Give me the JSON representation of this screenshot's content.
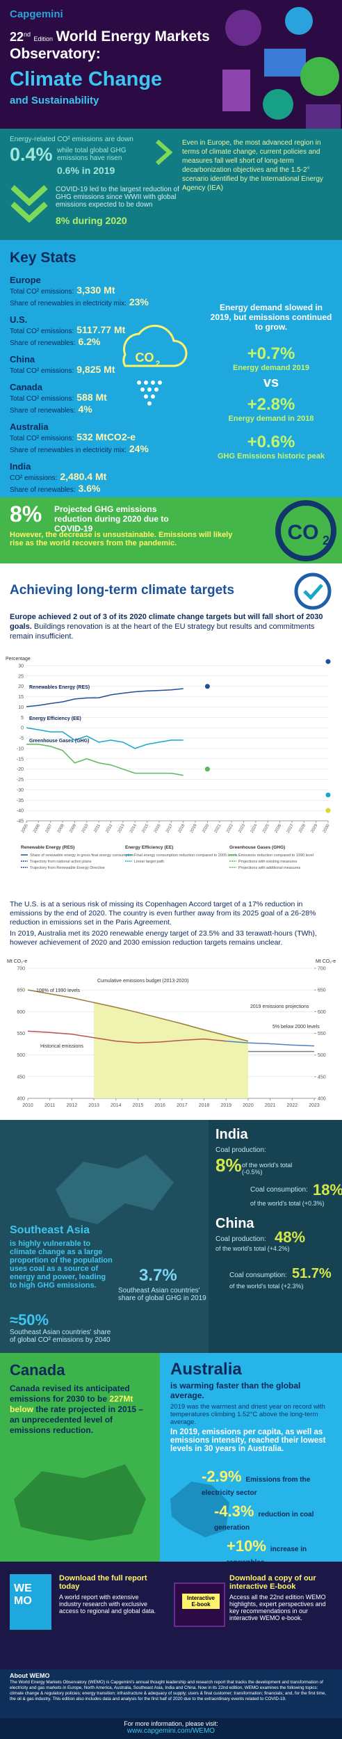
{
  "header": {
    "logo": "Capgemini",
    "edition_number": "22",
    "edition_suffix": "nd",
    "edition_word": "Edition",
    "title": "World Energy Markets Observatory:",
    "subtitle": "Climate Change",
    "tagline": "and Sustainability"
  },
  "intro": {
    "co2_text": "Energy-related CO² emissions are down",
    "co2_value": "0.4%",
    "ghg_text": "while total global GHG emissions have risen",
    "ghg_value": "0.6% in 2019",
    "covid_text": "COVID-19 led to the largest reduction of GHG emissions since WWII with global emissions expected to be down",
    "covid_value": "8% during 2020",
    "europe_text": "Even in Europe, the most advanced region in terms of climate change, current policies and measures fall well short of long-term decarbonization objectives and the 1.5-2° scenario identified by the International Energy Agency (IEA)"
  },
  "key_stats": {
    "title": "Key Stats",
    "regions": [
      {
        "name": "Europe",
        "lines": [
          {
            "label": "Total CO² emissions:",
            "value": "3,330 Mt"
          },
          {
            "label": "Share of renewables in electricity mix:",
            "value": "23%"
          }
        ]
      },
      {
        "name": "U.S.",
        "lines": [
          {
            "label": "Total CO² emissions:",
            "value": "5117.77 Mt"
          },
          {
            "label": "Share of renewables:",
            "value": "6.2%"
          }
        ]
      },
      {
        "name": "China",
        "lines": [
          {
            "label": "Total CO² emissions:",
            "value": "9,825 Mt"
          }
        ]
      },
      {
        "name": "Canada",
        "lines": [
          {
            "label": "Total CO² emissions:",
            "value": "588 Mt"
          },
          {
            "label": "Share of renewables:",
            "value": "4%"
          }
        ]
      },
      {
        "name": "Australia",
        "lines": [
          {
            "label": "Total CO² emissions:",
            "value": "532 MtCO2-e"
          },
          {
            "label": "Share of renewables in electricity mix:",
            "value": "24%"
          }
        ]
      },
      {
        "name": "India",
        "lines": [
          {
            "label": "CO² emissions:",
            "value": "2,480.4 Mt"
          },
          {
            "label": "Share of renewables:",
            "value": "3.6%"
          }
        ]
      }
    ]
  },
  "co2_icon": {
    "main": "CO",
    "sub": "2"
  },
  "demand": {
    "headline": "Energy demand slowed in 2019, but emissions continued to grow.",
    "items": [
      {
        "value": "+0.7%",
        "label": "Energy demand 2019"
      },
      {
        "value": "+2.8%",
        "label": "Energy demand in 2018"
      },
      {
        "value": "+0.6%",
        "label": "GHG Emissions historic peak"
      }
    ],
    "vs": "vs"
  },
  "projection": {
    "value": "8%",
    "text": "Projected GHG emissions reduction during 2020 due to COVID-19",
    "note": "However, the decrease is unsustainable. Emissions will likely rise as the world recovers from the pandemic."
  },
  "targets": {
    "title": "Achieving long-term climate targets",
    "lead": "Europe achieved 2 out of 3 of its 2020 climate change targets but will fall short of 2030 goals.",
    "body": "Buildings renovation is at the heart of the EU strategy but results and commitments remain insufficient."
  },
  "eu_chart": {
    "type": "line",
    "y_label": "Percentage",
    "xlim": [
      2005,
      2030
    ],
    "xticks": [
      2005,
      2006,
      2007,
      2008,
      2009,
      2010,
      2011,
      2012,
      2013,
      2014,
      2015,
      2016,
      2017,
      2018,
      2019,
      2020,
      2021,
      2022,
      2023,
      2024,
      2025,
      2026,
      2027,
      2028,
      2029,
      2030
    ],
    "ylim": [
      -45,
      30
    ],
    "yticks": [
      30,
      25,
      20,
      15,
      10,
      5,
      0,
      -5,
      -10,
      -15,
      -20,
      -25,
      -30,
      -35,
      -40,
      -45
    ],
    "series": [
      {
        "name": "Renewables Energy (RES)",
        "color": "#1f4e9c",
        "x": [
          2005,
          2006,
          2007,
          2008,
          2009,
          2010,
          2011,
          2012,
          2013,
          2014,
          2015,
          2016,
          2017,
          2018
        ],
        "values": [
          10.2,
          10.8,
          11.7,
          12.5,
          13.9,
          14.4,
          14.5,
          15.9,
          16.7,
          17.4,
          17.8,
          18.0,
          18.3,
          18.9
        ]
      },
      {
        "name": "Energy Efficiency (EE)",
        "color": "#18a7c8",
        "x": [
          2005,
          2006,
          2007,
          2008,
          2009,
          2010,
          2011,
          2012,
          2013,
          2014,
          2015,
          2016,
          2017,
          2018
        ],
        "values": [
          0,
          -1,
          -2,
          -2,
          -6,
          -4,
          -7,
          -6,
          -7,
          -10,
          -8,
          -7,
          -6,
          -6
        ]
      },
      {
        "name": "Greenhouse Gases (GHG)",
        "color": "#5cb85c",
        "x": [
          2005,
          2006,
          2007,
          2008,
          2009,
          2010,
          2011,
          2012,
          2013,
          2014,
          2015,
          2016,
          2017,
          2018
        ],
        "values": [
          -8,
          -8,
          -9,
          -11,
          -17,
          -15,
          -17,
          -18,
          -20,
          -22,
          -22,
          -22,
          -22,
          -23
        ]
      }
    ],
    "targets": [
      {
        "x": 2020,
        "value": 20,
        "color": "#1f4e9c"
      },
      {
        "x": 2030,
        "value": 32,
        "color": "#1f4e9c"
      },
      {
        "x": 2020,
        "value": -20,
        "color": "#18a7c8"
      },
      {
        "x": 2030,
        "value": -32.5,
        "color": "#18a7c8"
      },
      {
        "x": 2020,
        "value": -20,
        "color": "#5cb85c"
      },
      {
        "x": 2030,
        "value": -40,
        "color": "#d9d926"
      }
    ],
    "legend": [
      {
        "title": "Renewable Energy (RES)",
        "items": [
          "Share of renewable energy in gross final energy consumption",
          "Trajectory from national action plans",
          "Trajectory from Renewable Energy Directive"
        ]
      },
      {
        "title": "Energy Efficiency (EE)",
        "items": [
          "Final energy consumption reduction compared to 2005 levels",
          "Linear target path"
        ]
      },
      {
        "title": "Greenhouse Gases (GHG)",
        "items": [
          "Emissions reduction compared to 1990 level",
          "Projections with existing measures",
          "Projections with additional measures"
        ]
      }
    ]
  },
  "us_text": "The U.S. is at a serious risk of missing its Copenhagen Accord target of a 17% reduction in emissions by the end of 2020. The country is even further away from its 2025 goal of a 26-28% reduction in emissions set in the Paris Agreement.",
  "aus_text": "In 2019, Australia met its 2020 renewable energy target of 23.5% and 33 terawatt-hours (TWh), however achievement of 2020 and 2030 emission reduction targets remains unclear.",
  "aus_chart": {
    "type": "line",
    "y_label": "Mt CO₂-e",
    "xlim": [
      2010,
      2023
    ],
    "xticks": [
      2010,
      2011,
      2012,
      2013,
      2014,
      2015,
      2016,
      2017,
      2018,
      2019,
      2020,
      2021,
      2022,
      2023
    ],
    "ylim": [
      400,
      700
    ],
    "yticks": [
      400,
      450,
      500,
      550,
      600,
      650,
      700
    ],
    "y2lim": [
      400,
      700
    ],
    "y2ticks": [
      400,
      450,
      500,
      550,
      600,
      650,
      700
    ],
    "budget_x": [
      2013,
      2020
    ],
    "budget_color": "#eef3b0",
    "series": [
      {
        "name": "108% of 1990 levels",
        "color": "#9c7a3c",
        "x": [
          2010,
          2011,
          2012,
          2013,
          2014,
          2015,
          2016,
          2017,
          2018,
          2019,
          2020
        ],
        "values": [
          650,
          641,
          632,
          621,
          610,
          598,
          585,
          572,
          558,
          545,
          532
        ]
      },
      {
        "name": "Historical emissions",
        "color": "#c0504d",
        "x": [
          2010,
          2011,
          2012,
          2013,
          2014,
          2015,
          2016,
          2017,
          2018,
          2019
        ],
        "values": [
          555,
          552,
          548,
          540,
          532,
          528,
          530,
          534,
          537,
          532
        ]
      },
      {
        "name": "2019 emissions projections",
        "color": "#4f81bd",
        "x": [
          2019,
          2020,
          2021,
          2022,
          2023
        ],
        "values": [
          532,
          528,
          526,
          523,
          521
        ]
      },
      {
        "name": "5% below 2000 levels",
        "color": "#7f7f7f",
        "x": [
          2020,
          2021,
          2022,
          2023
        ],
        "values": [
          508,
          508,
          508,
          508
        ]
      }
    ],
    "annotations": [
      "Cumulative emissions budget (2013-2020)"
    ]
  },
  "asia": {
    "title": "Southeast Asia",
    "text": "is highly vulnerable to climate change as a large proportion of the population uses coal as a source of energy and power, leading to high GHG emissions.",
    "stat1_value": "3.7%",
    "stat1_label": "Southeast Asian countries' share of global GHG in 2019",
    "stat2_value": "≈50%",
    "stat2_label": "Southeast Asian countries' share of global CO² emissions by 2040"
  },
  "india": {
    "title": "India",
    "production_label": "Coal production:",
    "production_value": "8%",
    "production_note": "of the world's total (-0.5%)",
    "consumption_label": "Coal consumption:",
    "consumption_value": "18%",
    "consumption_note": "of the world's total (+0.3%)"
  },
  "china": {
    "title": "China",
    "production_label": "Coal production:",
    "production_value": "48%",
    "production_note": "of the world's total (+4.2%)",
    "consumption_label": "Coal consumption:",
    "consumption_value": "51.7%",
    "consumption_note": "of the world's total (+2.3%)"
  },
  "canada": {
    "title": "Canada",
    "text_pre": "Canada revised its anticipated emissions for 2030 to be",
    "text_highlight": "227Mt below",
    "text_post": "the rate projected in 2015 – an unprecedented level of emissions reduction."
  },
  "australia": {
    "title": "Australia",
    "subtitle": "is warming faster than the global average.",
    "note": "2019 was the warmest and driest year on record with temperatures climbing 1.52°C above the long-term average.",
    "text": "In 2019, emissions per capita, as well as emissions intensity, reached their lowest levels in 30 years in Australia.",
    "items": [
      {
        "value": "-2.9%",
        "label": "Emissions from the electricity sector"
      },
      {
        "value": "-4.3%",
        "label": "reduction in coal generation"
      },
      {
        "value": "+10%",
        "label": "increase in renewables"
      }
    ]
  },
  "downloads": {
    "report_title": "Download the full report today",
    "report_text": "A world report with extensive industry research with exclusive access to regional and global data.",
    "cover_text": "WE MO",
    "ebook_title": "Download a copy of our interactive E-book",
    "ebook_text": "Access all the 22nd edition WEMO highlights, expert perspectives and key recommendations in our interactive WEMO e-book.",
    "ebook_badge": "Interactive E-book"
  },
  "about": {
    "title": "About WEMO",
    "text": "The World Energy Markets Observatory (WEMO) is Capgemini's annual thought leadership and research report that tracks the development and transformation of electricity and gas markets in Europe, North America, Australia, Southeast Asia, India and China. Now in its 22nd edition, WEMO examines the following topics: climate change & regulatory policies; energy transition; infrastructure & adequacy of supply; users & final customer; transformation; financials; and, for the first time, the oil & gas industry. This edition also includes data and analysis for the first half of 2020 due to the extraordinary events related to COVID-19."
  },
  "footer": {
    "text": "For more information, please visit:",
    "url": "www.capgemini.com/WEMO"
  }
}
